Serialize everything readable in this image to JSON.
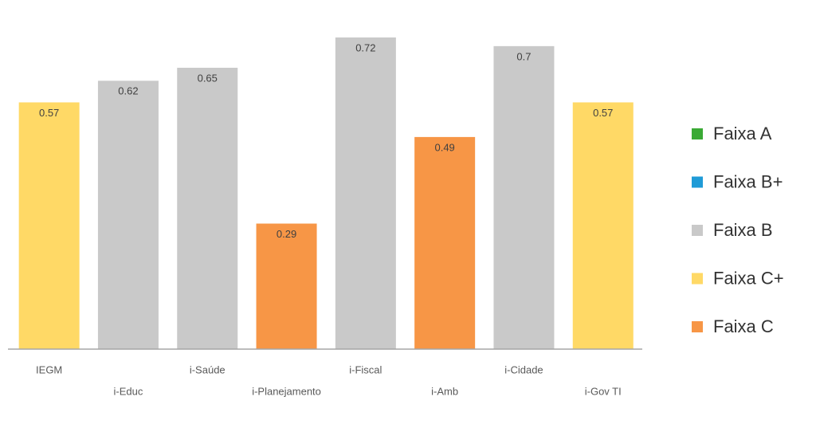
{
  "chart_data": {
    "type": "bar",
    "categories": [
      "IEGM",
      "i-Educ",
      "i-Saúde",
      "i-Planejamento",
      "i-Fiscal",
      "i-Amb",
      "i-Cidade",
      "i-Gov TI"
    ],
    "values": [
      0.57,
      0.62,
      0.65,
      0.29,
      0.72,
      0.49,
      0.7,
      0.57
    ],
    "colors": [
      "#ffd966",
      "#c9c9c9",
      "#c9c9c9",
      "#f79646",
      "#c9c9c9",
      "#f79646",
      "#c9c9c9",
      "#ffd966"
    ],
    "legend": [
      {
        "name": "Faixa A",
        "color": "#3aaa35"
      },
      {
        "name": "Faixa B+",
        "color": "#1f9bd7"
      },
      {
        "name": "Faixa B",
        "color": "#c9c9c9"
      },
      {
        "name": "Faixa C+",
        "color": "#ffd966"
      },
      {
        "name": "Faixa C",
        "color": "#f79646"
      }
    ]
  }
}
